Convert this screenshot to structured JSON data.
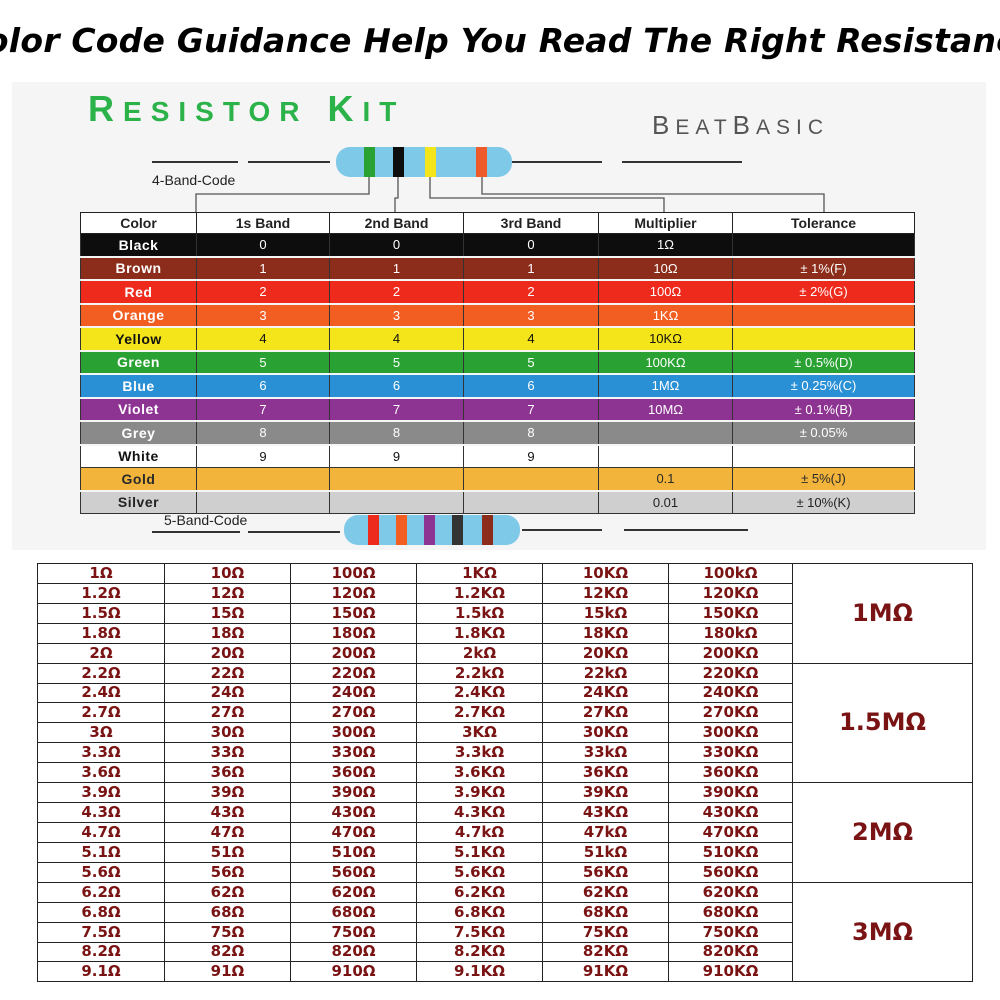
{
  "banner": {
    "title": "Color Code Guidance Help You Read The Right Resistance"
  },
  "card": {
    "kit_title": "RESISTOR KIT",
    "brand": "BEATBASIC",
    "label_4band": "4-Band-Code",
    "label_5band": "5-Band-Code"
  },
  "color_table": {
    "headers": [
      "Color",
      "1s Band",
      "2nd Band",
      "3rd Band",
      "Multiplier",
      "Tolerance"
    ],
    "rows": [
      {
        "name": "Black",
        "bg": "#0d0d0d",
        "fg": "#ffffff",
        "b1": "0",
        "b2": "0",
        "b3": "0",
        "mult": "1Ω",
        "tol": ""
      },
      {
        "name": "Brown",
        "bg": "#8b2d1a",
        "fg": "#ffffff",
        "b1": "1",
        "b2": "1",
        "b3": "1",
        "mult": "10Ω",
        "tol": "± 1%(F)"
      },
      {
        "name": "Red",
        "bg": "#ee2a1c",
        "fg": "#ffffff",
        "b1": "2",
        "b2": "2",
        "b3": "2",
        "mult": "100Ω",
        "tol": "± 2%(G)"
      },
      {
        "name": "Orange",
        "bg": "#f25d22",
        "fg": "#ffffff",
        "b1": "3",
        "b2": "3",
        "b3": "3",
        "mult": "1KΩ",
        "tol": ""
      },
      {
        "name": "Yellow",
        "bg": "#f4e41a",
        "fg": "#111111",
        "b1": "4",
        "b2": "4",
        "b3": "4",
        "mult": "10KΩ",
        "tol": ""
      },
      {
        "name": "Green",
        "bg": "#2aa233",
        "fg": "#ffffff",
        "b1": "5",
        "b2": "5",
        "b3": "5",
        "mult": "100KΩ",
        "tol": "± 0.5%(D)"
      },
      {
        "name": "Blue",
        "bg": "#2a90d6",
        "fg": "#ffffff",
        "b1": "6",
        "b2": "6",
        "b3": "6",
        "mult": "1MΩ",
        "tol": "± 0.25%(C)"
      },
      {
        "name": "Violet",
        "bg": "#8d3391",
        "fg": "#ffffff",
        "b1": "7",
        "b2": "7",
        "b3": "7",
        "mult": "10MΩ",
        "tol": "± 0.1%(B)"
      },
      {
        "name": "Grey",
        "bg": "#8a8a8a",
        "fg": "#ffffff",
        "b1": "8",
        "b2": "8",
        "b3": "8",
        "mult": "",
        "tol": "± 0.05%"
      },
      {
        "name": "White",
        "bg": "#ffffff",
        "fg": "#111111",
        "b1": "9",
        "b2": "9",
        "b3": "9",
        "mult": "",
        "tol": ""
      },
      {
        "name": "Gold",
        "bg": "#f2b43b",
        "fg": "#2a2a2a",
        "b1": "",
        "b2": "",
        "b3": "",
        "mult": "0.1",
        "tol": "± 5%(J)"
      },
      {
        "name": "Silver",
        "bg": "#cfcfcf",
        "fg": "#222222",
        "b1": "",
        "b2": "",
        "b3": "",
        "mult": "0.01",
        "tol": "± 10%(K)"
      }
    ]
  },
  "resistor_colors": {
    "body": "#7ec8e8",
    "four_band": [
      "#2aa233",
      "#0d0d0d",
      "#f4e41a",
      "#ee5a2a"
    ],
    "five_band": [
      "#ee2a1c",
      "#f25d22",
      "#8d3391",
      "#333333",
      "#8b2d1a"
    ]
  },
  "values_table": {
    "rows": [
      [
        "1Ω",
        "10Ω",
        "100Ω",
        "1KΩ",
        "10KΩ",
        "100kΩ"
      ],
      [
        "1.2Ω",
        "12Ω",
        "120Ω",
        "1.2KΩ",
        "12KΩ",
        "120KΩ"
      ],
      [
        "1.5Ω",
        "15Ω",
        "150Ω",
        "1.5kΩ",
        "15kΩ",
        "150KΩ"
      ],
      [
        "1.8Ω",
        "18Ω",
        "180Ω",
        "1.8KΩ",
        "18KΩ",
        "180kΩ"
      ],
      [
        "2Ω",
        "20Ω",
        "200Ω",
        "2kΩ",
        "20KΩ",
        "200KΩ"
      ],
      [
        "2.2Ω",
        "22Ω",
        "220Ω",
        "2.2kΩ",
        "22kΩ",
        "220KΩ"
      ],
      [
        "2.4Ω",
        "24Ω",
        "240Ω",
        "2.4KΩ",
        "24KΩ",
        "240KΩ"
      ],
      [
        "2.7Ω",
        "27Ω",
        "270Ω",
        "2.7KΩ",
        "27KΩ",
        "270KΩ"
      ],
      [
        "3Ω",
        "30Ω",
        "300Ω",
        "3KΩ",
        "30KΩ",
        "300KΩ"
      ],
      [
        "3.3Ω",
        "33Ω",
        "330Ω",
        "3.3kΩ",
        "33kΩ",
        "330KΩ"
      ],
      [
        "3.6Ω",
        "36Ω",
        "360Ω",
        "3.6KΩ",
        "36KΩ",
        "360KΩ"
      ],
      [
        "3.9Ω",
        "39Ω",
        "390Ω",
        "3.9KΩ",
        "39KΩ",
        "390KΩ"
      ],
      [
        "4.3Ω",
        "43Ω",
        "430Ω",
        "4.3KΩ",
        "43KΩ",
        "430KΩ"
      ],
      [
        "4.7Ω",
        "47Ω",
        "470Ω",
        "4.7kΩ",
        "47kΩ",
        "470KΩ"
      ],
      [
        "5.1Ω",
        "51Ω",
        "510Ω",
        "5.1KΩ",
        "51kΩ",
        "510KΩ"
      ],
      [
        "5.6Ω",
        "56Ω",
        "560Ω",
        "5.6KΩ",
        "56KΩ",
        "560KΩ"
      ],
      [
        "6.2Ω",
        "62Ω",
        "620Ω",
        "6.2KΩ",
        "62KΩ",
        "620KΩ"
      ],
      [
        "6.8Ω",
        "68Ω",
        "680Ω",
        "6.8KΩ",
        "68KΩ",
        "680KΩ"
      ],
      [
        "7.5Ω",
        "75Ω",
        "750Ω",
        "7.5KΩ",
        "75KΩ",
        "750KΩ"
      ],
      [
        "8.2Ω",
        "82Ω",
        "820Ω",
        "8.2KΩ",
        "82KΩ",
        "820KΩ"
      ],
      [
        "9.1Ω",
        "91Ω",
        "910Ω",
        "9.1KΩ",
        "91KΩ",
        "910KΩ"
      ]
    ],
    "megaohm_groups": [
      "1MΩ",
      "1.5MΩ",
      "2MΩ",
      "3MΩ"
    ]
  }
}
